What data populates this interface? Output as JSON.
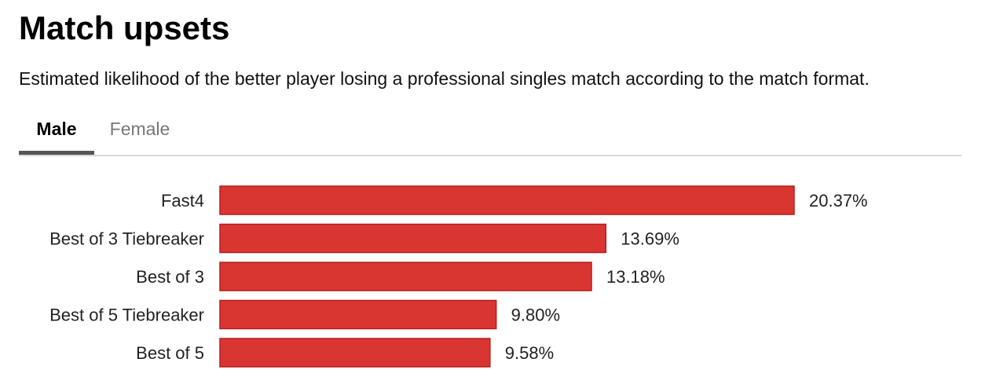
{
  "title": "Match upsets",
  "subtitle": "Estimated likelihood of the better player losing a professional singles match according to the match format.",
  "tabs": [
    {
      "label": "Male",
      "active": true
    },
    {
      "label": "Female",
      "active": false
    }
  ],
  "colors": {
    "bar_fill": "#d93632",
    "bar_stroke": "#b51c1c",
    "active_tab_underline": "#555555"
  },
  "chart_data": {
    "type": "bar",
    "orientation": "horizontal",
    "categories": [
      "Fast4",
      "Best of 3 Tiebreaker",
      "Best of 3",
      "Best of 5 Tiebreaker",
      "Best of 5"
    ],
    "values": [
      20.37,
      13.69,
      13.18,
      9.8,
      9.58
    ],
    "value_labels": [
      "20.37%",
      "13.69%",
      "13.18%",
      "9.80%",
      "9.58%"
    ],
    "xlim": [
      0,
      20.37
    ],
    "grid": false,
    "legend": "none"
  }
}
